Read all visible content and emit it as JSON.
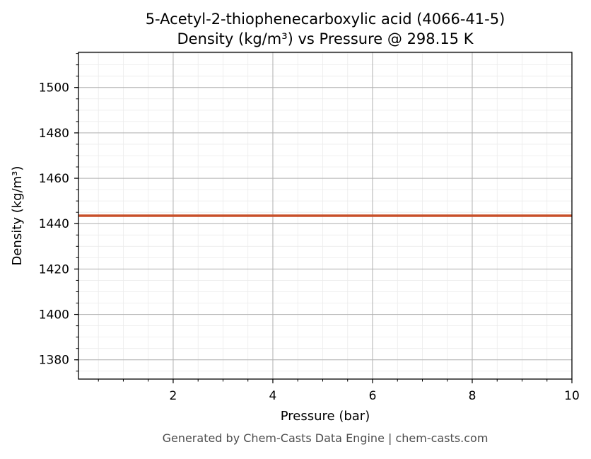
{
  "chart_data": {
    "type": "line",
    "title_line1": "5-Acetyl-2-thiophenecarboxylic acid (4066-41-5)",
    "title_line2": "Density (kg/m³) vs Pressure @ 298.15 K",
    "xlabel": "Pressure (bar)",
    "ylabel": "Density (kg/m³)",
    "xlim": [
      0.1,
      10
    ],
    "ylim": [
      1371.5,
      1515.5
    ],
    "x_ticks": [
      2,
      4,
      6,
      8,
      10
    ],
    "y_ticks": [
      1380,
      1400,
      1420,
      1440,
      1460,
      1480,
      1500
    ],
    "grid": true,
    "series": [
      {
        "color": "#c8502a",
        "x": [
          0.1,
          10
        ],
        "y": [
          1443.5,
          1443.5
        ]
      }
    ],
    "footer": "Generated by Chem-Casts Data Engine | chem-casts.com"
  }
}
